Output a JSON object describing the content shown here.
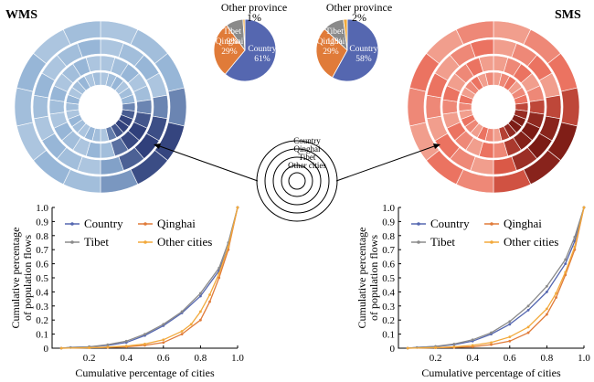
{
  "panel_titles": {
    "wms": "WMS",
    "sms": "SMS"
  },
  "legend_labels": [
    "Country",
    "Qinghai",
    "Tibet",
    "Other cities"
  ],
  "ring_guide_labels": [
    "Country",
    "Qinghai",
    "Tibet",
    "Other cities"
  ],
  "colors": {
    "country": "#5567b0",
    "tibet": "#8a8a8a",
    "qinghai": "#e07b39",
    "other": "#f2a93b",
    "wms_ring_light": "#b9cee4",
    "wms_ring_mid": "#8fb0d4",
    "wms_ring_dark": "#2f3f7a",
    "sms_ring_light": "#f5b7a8",
    "sms_ring_mid": "#e8624f",
    "sms_ring_dark": "#7a1a14"
  },
  "chart_data": [
    {
      "type": "pie",
      "panel": "WMS",
      "slices": [
        {
          "label": "Country",
          "value": 61,
          "text": "Country\n61%"
        },
        {
          "label": "Qinghai",
          "value": 29,
          "text": "Qinghai\n29%"
        },
        {
          "label": "Tibet",
          "value": 9,
          "text": "Tibet\n9%"
        },
        {
          "label": "Other province",
          "value": 1,
          "text": "Other province\n1%"
        }
      ]
    },
    {
      "type": "pie",
      "panel": "SMS",
      "slices": [
        {
          "label": "Country",
          "value": 58,
          "text": "Country\n58%"
        },
        {
          "label": "Qinghai",
          "value": 29,
          "text": "Qinghai\n29%"
        },
        {
          "label": "Tibet",
          "value": 11,
          "text": "Tibet\n11%"
        },
        {
          "label": "Other province",
          "value": 2,
          "text": "Other province\n2%"
        }
      ]
    },
    {
      "type": "line",
      "panel": "WMS",
      "xlabel": "Cumulative percentage of cities",
      "ylabel": "Cumulative percentage\nof population flows",
      "xlim": [
        0,
        1.0
      ],
      "ylim": [
        0,
        1.0
      ],
      "xticks": [
        "0.2",
        "0.4",
        "0.6",
        "0.8",
        "1.0"
      ],
      "yticks": [
        "0",
        "0.1",
        "0.2",
        "0.3",
        "0.4",
        "0.5",
        "0.6",
        "0.7",
        "0.8",
        "0.9",
        "1.0"
      ],
      "series": [
        {
          "name": "Country",
          "points": [
            [
              0.05,
              0
            ],
            [
              0.1,
              0.005
            ],
            [
              0.2,
              0.01
            ],
            [
              0.3,
              0.02
            ],
            [
              0.4,
              0.04
            ],
            [
              0.5,
              0.09
            ],
            [
              0.6,
              0.16
            ],
            [
              0.7,
              0.25
            ],
            [
              0.8,
              0.37
            ],
            [
              0.9,
              0.55
            ],
            [
              0.95,
              0.72
            ],
            [
              1.0,
              1.0
            ]
          ]
        },
        {
          "name": "Qinghai",
          "points": [
            [
              0.05,
              0
            ],
            [
              0.2,
              0.003
            ],
            [
              0.3,
              0.006
            ],
            [
              0.4,
              0.01
            ],
            [
              0.5,
              0.02
            ],
            [
              0.6,
              0.04
            ],
            [
              0.7,
              0.1
            ],
            [
              0.8,
              0.2
            ],
            [
              0.85,
              0.33
            ],
            [
              0.9,
              0.5
            ],
            [
              0.95,
              0.7
            ],
            [
              1.0,
              1.0
            ]
          ]
        },
        {
          "name": "Tibet",
          "points": [
            [
              0.05,
              0
            ],
            [
              0.1,
              0.005
            ],
            [
              0.2,
              0.01
            ],
            [
              0.3,
              0.025
            ],
            [
              0.4,
              0.05
            ],
            [
              0.5,
              0.1
            ],
            [
              0.6,
              0.17
            ],
            [
              0.7,
              0.26
            ],
            [
              0.8,
              0.39
            ],
            [
              0.9,
              0.57
            ],
            [
              0.95,
              0.75
            ],
            [
              1.0,
              1.0
            ]
          ]
        },
        {
          "name": "Other cities",
          "points": [
            [
              0.05,
              0
            ],
            [
              0.2,
              0.003
            ],
            [
              0.3,
              0.008
            ],
            [
              0.4,
              0.015
            ],
            [
              0.5,
              0.03
            ],
            [
              0.6,
              0.06
            ],
            [
              0.7,
              0.12
            ],
            [
              0.75,
              0.17
            ],
            [
              0.8,
              0.26
            ],
            [
              0.85,
              0.38
            ],
            [
              0.9,
              0.53
            ],
            [
              0.95,
              0.72
            ],
            [
              1.0,
              1.0
            ]
          ]
        }
      ]
    },
    {
      "type": "line",
      "panel": "SMS",
      "xlabel": "Cumulative percentage of cities",
      "ylabel": "Cumulative percentage\nof population flows",
      "xlim": [
        0,
        1.0
      ],
      "ylim": [
        0,
        1.0
      ],
      "xticks": [
        "0.2",
        "0.4",
        "0.6",
        "0.8",
        "1.0"
      ],
      "yticks": [
        "0",
        "0.1",
        "0.2",
        "0.3",
        "0.4",
        "0.5",
        "0.6",
        "0.7",
        "0.8",
        "0.9",
        "1.0"
      ],
      "series": [
        {
          "name": "Country",
          "points": [
            [
              0.05,
              0
            ],
            [
              0.1,
              0.005
            ],
            [
              0.2,
              0.012
            ],
            [
              0.3,
              0.025
            ],
            [
              0.4,
              0.05
            ],
            [
              0.5,
              0.1
            ],
            [
              0.6,
              0.17
            ],
            [
              0.7,
              0.27
            ],
            [
              0.8,
              0.4
            ],
            [
              0.9,
              0.6
            ],
            [
              0.95,
              0.76
            ],
            [
              1.0,
              1.0
            ]
          ]
        },
        {
          "name": "Qinghai",
          "points": [
            [
              0.05,
              0
            ],
            [
              0.2,
              0.003
            ],
            [
              0.3,
              0.006
            ],
            [
              0.4,
              0.01
            ],
            [
              0.5,
              0.025
            ],
            [
              0.6,
              0.05
            ],
            [
              0.7,
              0.11
            ],
            [
              0.8,
              0.24
            ],
            [
              0.85,
              0.36
            ],
            [
              0.9,
              0.52
            ],
            [
              0.95,
              0.7
            ],
            [
              1.0,
              1.0
            ]
          ]
        },
        {
          "name": "Tibet",
          "points": [
            [
              0.05,
              0
            ],
            [
              0.1,
              0.005
            ],
            [
              0.2,
              0.013
            ],
            [
              0.3,
              0.03
            ],
            [
              0.4,
              0.06
            ],
            [
              0.5,
              0.11
            ],
            [
              0.6,
              0.19
            ],
            [
              0.7,
              0.3
            ],
            [
              0.8,
              0.44
            ],
            [
              0.9,
              0.63
            ],
            [
              0.95,
              0.79
            ],
            [
              1.0,
              1.0
            ]
          ]
        },
        {
          "name": "Other cities",
          "points": [
            [
              0.05,
              0
            ],
            [
              0.2,
              0.004
            ],
            [
              0.3,
              0.01
            ],
            [
              0.4,
              0.02
            ],
            [
              0.5,
              0.04
            ],
            [
              0.6,
              0.08
            ],
            [
              0.7,
              0.15
            ],
            [
              0.8,
              0.28
            ],
            [
              0.85,
              0.39
            ],
            [
              0.9,
              0.54
            ],
            [
              0.95,
              0.72
            ],
            [
              1.0,
              1.0
            ]
          ]
        }
      ]
    }
  ]
}
